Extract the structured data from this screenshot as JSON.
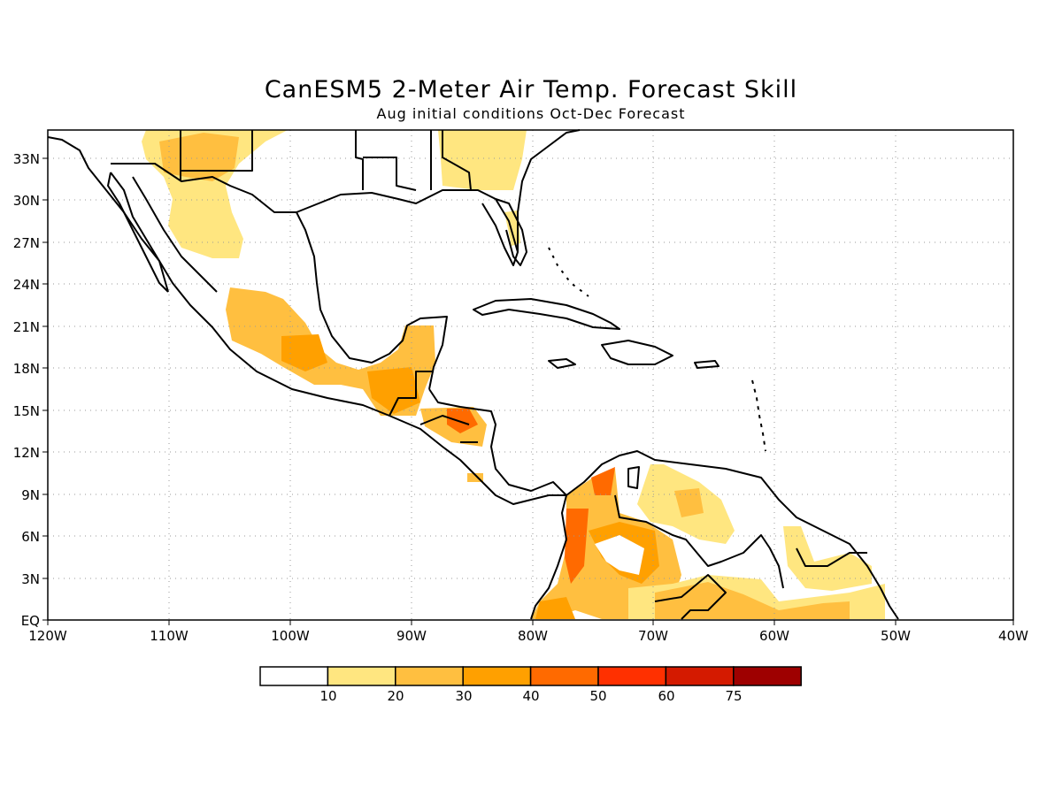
{
  "title": "CanESM5 2-Meter Air Temp. Forecast Skill",
  "subtitle": "Aug initial conditions  Oct-Dec Forecast",
  "map": {
    "lon_range": [
      -120,
      -40
    ],
    "lat_range": [
      0,
      35
    ],
    "x_ticks": [
      "120W",
      "110W",
      "100W",
      "90W",
      "80W",
      "70W",
      "60W",
      "50W",
      "40W"
    ],
    "y_ticks": [
      "EQ",
      "3N",
      "6N",
      "9N",
      "12N",
      "15N",
      "18N",
      "21N",
      "24N",
      "27N",
      "30N",
      "33N"
    ],
    "grid": "dotted"
  },
  "colorbar": {
    "labels": [
      "10",
      "20",
      "30",
      "40",
      "50",
      "60",
      "75"
    ],
    "colors": [
      "#ffffff",
      "#ffe680",
      "#ffbf40",
      "#ffa000",
      "#ff6a00",
      "#ff3000",
      "#d41a00",
      "#9e0000"
    ]
  }
}
